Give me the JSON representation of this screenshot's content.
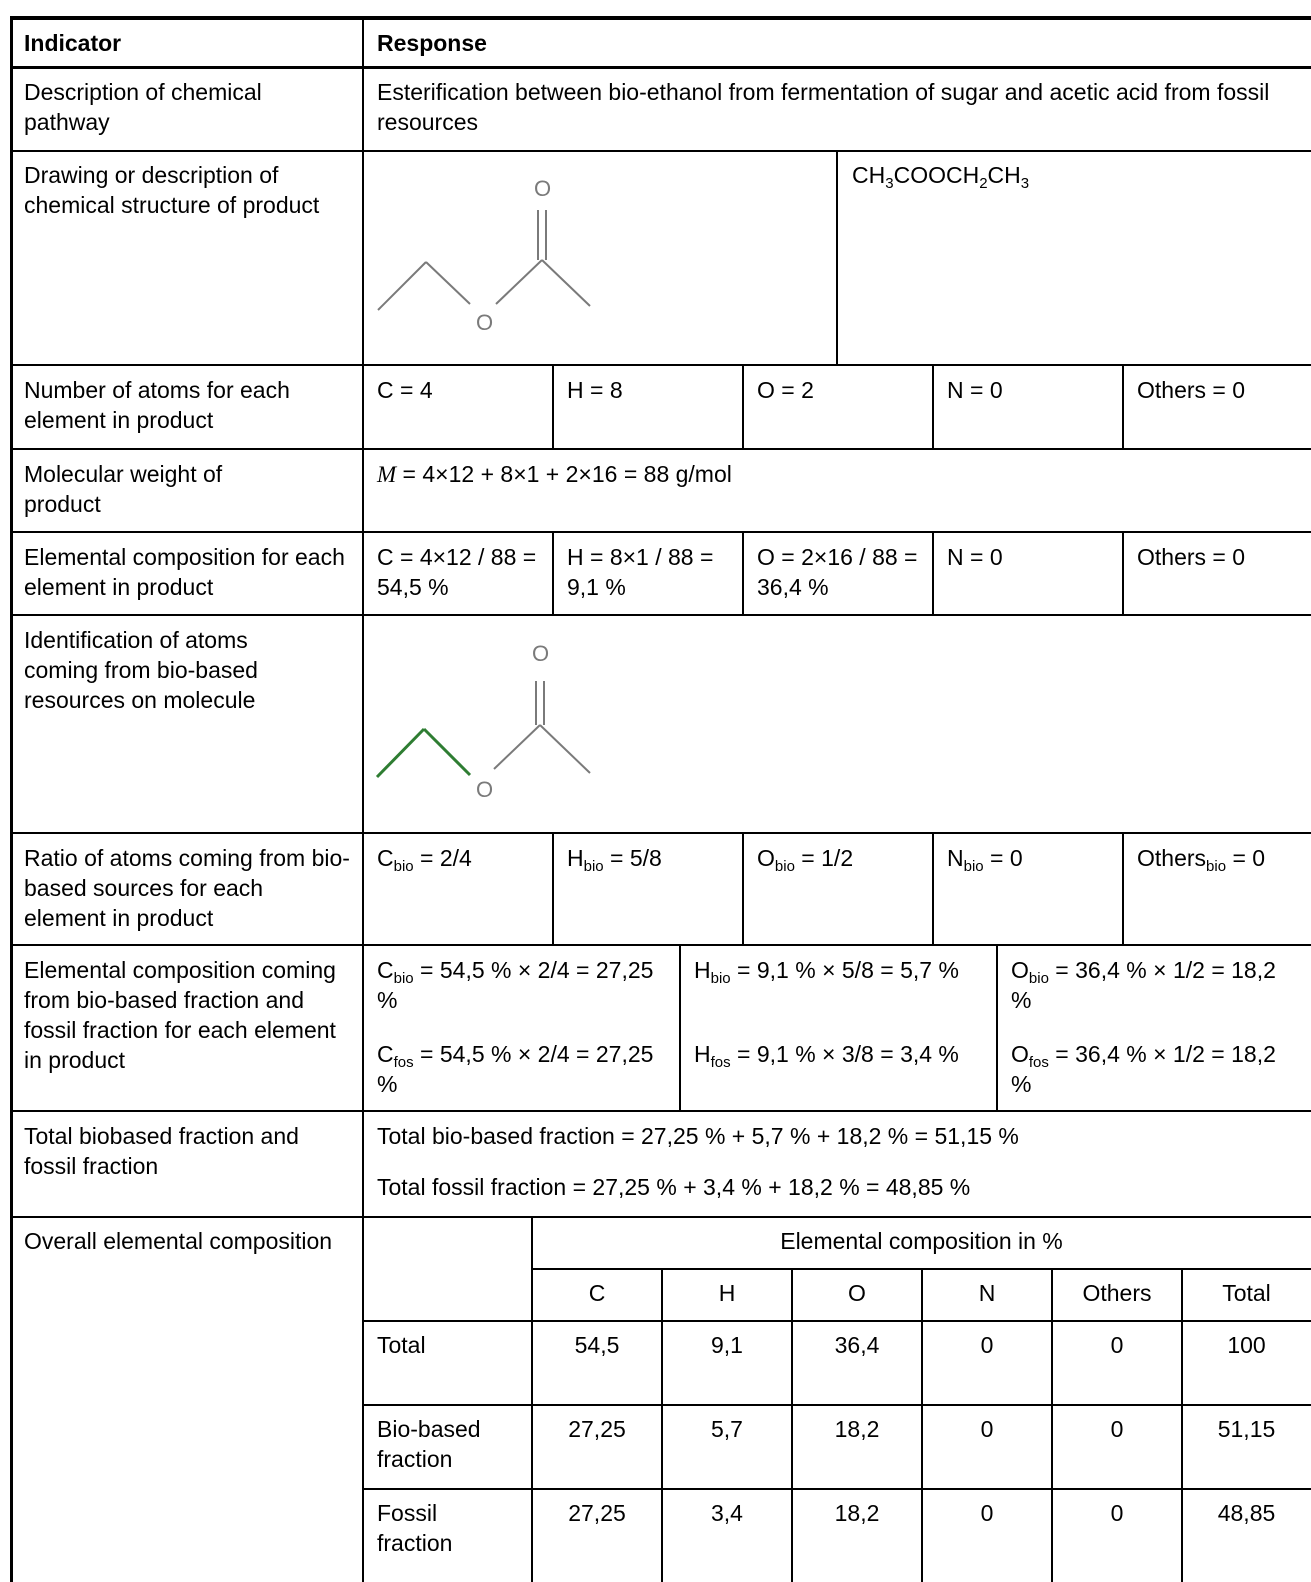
{
  "header": {
    "indicator": "Indicator",
    "response": "Response"
  },
  "rows": {
    "pathway": {
      "label": "Description of chemical pathway",
      "value": "Esterification between bio-ethanol from fermentation of sugar and acetic acid from fossil resources"
    },
    "structure": {
      "label": "Drawing or description of chemical structure of product",
      "formula": {
        "a": "CH",
        "a_sub": "3",
        "b": "COOCH",
        "b_sub": "2",
        "c": "CH",
        "c_sub": "3"
      },
      "atom_o_top": "O",
      "atom_o_ring": "O"
    },
    "atoms": {
      "label": "Number of atoms for each element in product",
      "c": "C = 4",
      "h": "H = 8",
      "o": "O = 2",
      "n": "N = 0",
      "others": "Others = 0"
    },
    "molweight": {
      "label": "Molecular weight of product",
      "symbol": "M",
      "expr": " = 4×12 + 8×1 + 2×16 = 88 g/mol"
    },
    "composition": {
      "label": "Elemental composition for each element in product",
      "c": "C = 4×12 / 88 = 54,5 %",
      "h": "H = 8×1 / 88 = 9,1 %",
      "o": "O = 2×16 / 88 = 36,4 %",
      "n": "N = 0",
      "others": "Others = 0"
    },
    "identification": {
      "label": "Identification of atoms coming from bio-based resources on molecule",
      "atom_o_top": "O",
      "atom_o_ring": "O",
      "bio_color": "#2e7d32"
    },
    "ratio": {
      "label": "Ratio of atoms coming from bio-based sources for each element in product",
      "c": {
        "el": "C",
        "sub": "bio",
        "rest": " = 2/4"
      },
      "h": {
        "el": "H",
        "sub": "bio",
        "rest": " = 5/8"
      },
      "o": {
        "el": "O",
        "sub": "bio",
        "rest": " = 1/2"
      },
      "n": {
        "el": "N",
        "sub": "bio",
        "rest": " = 0"
      },
      "others": {
        "el": "Others",
        "sub": "bio",
        "rest": " = 0"
      }
    },
    "fractions": {
      "label": "Elemental composition coming from bio-based fraction and fossil fraction for each element in product",
      "c_bio": {
        "el": "C",
        "sub": "bio",
        "rest": " = 54,5 % × 2/4 = 27,25 %"
      },
      "c_fos": {
        "el": "C",
        "sub": "fos",
        "rest": " = 54,5 % × 2/4 = 27,25 %"
      },
      "h_bio": {
        "el": "H",
        "sub": "bio",
        "rest": " = 9,1 % × 5/8 = 5,7 %"
      },
      "h_fos": {
        "el": "H",
        "sub": "fos",
        "rest": " = 9,1 % × 3/8 = 3,4 %"
      },
      "o_bio": {
        "el": "O",
        "sub": "bio",
        "rest": " = 36,4 % × 1/2 = 18,2 %"
      },
      "o_fos": {
        "el": "O",
        "sub": "fos",
        "rest": " = 36,4 % × 1/2 = 18,2 %"
      }
    },
    "total": {
      "label": "Total biobased fraction and fossil fraction",
      "bio": "Total bio-based fraction = 27,25 % + 5,7 % + 18,2 % = 51,15 %",
      "fossil": "Total fossil fraction = 27,25 % + 3,4 % + 18,2 % = 48,85 %"
    },
    "overall": {
      "label": "Overall elemental composition",
      "table_title": "Elemental composition in %",
      "columns": [
        "C",
        "H",
        "O",
        "N",
        "Others",
        "Total"
      ],
      "rows": [
        {
          "name": "Total",
          "values": [
            "54,5",
            "9,1",
            "36,4",
            "0",
            "0",
            "100"
          ]
        },
        {
          "name": "Bio-based fraction",
          "values": [
            "27,25",
            "5,7",
            "18,2",
            "0",
            "0",
            "51,15"
          ]
        },
        {
          "name": "Fossil fraction",
          "values": [
            "27,25",
            "3,4",
            "18,2",
            "0",
            "0",
            "48,85"
          ]
        }
      ]
    }
  }
}
